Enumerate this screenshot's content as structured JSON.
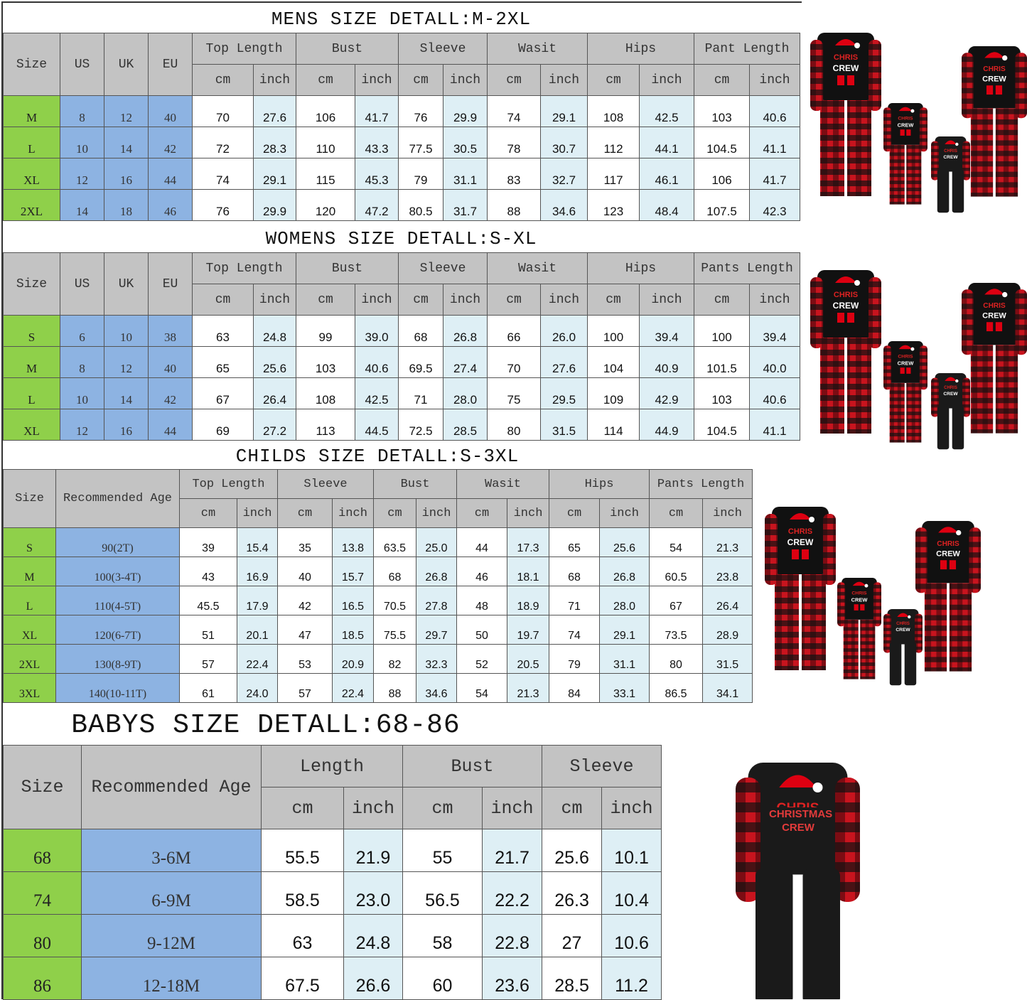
{
  "colors": {
    "header": "#c3c3c3",
    "size_col": "#8fd04a",
    "region_col": "#8db3e2",
    "inch_col": "#deeff5",
    "plaid_red": "#c8141e",
    "shirt": "#111111"
  },
  "print_text": "CHRISTMAS CREW",
  "tables": [
    {
      "key": "mens",
      "title": "MENS SIZE DETALL:M-2XL",
      "fixed_headers": [
        "Size",
        "US",
        "UK",
        "EU"
      ],
      "groups": [
        "Top Length",
        "Bust",
        "Sleeve",
        "Wasit",
        "Hips",
        "Pant Length"
      ],
      "units": [
        "cm",
        "inch"
      ],
      "rows": [
        [
          "M",
          "8",
          "12",
          "40",
          "70",
          "27.6",
          "106",
          "41.7",
          "76",
          "29.9",
          "74",
          "29.1",
          "108",
          "42.5",
          "103",
          "40.6"
        ],
        [
          "L",
          "10",
          "14",
          "42",
          "72",
          "28.3",
          "110",
          "43.3",
          "77.5",
          "30.5",
          "78",
          "30.7",
          "112",
          "44.1",
          "104.5",
          "41.1"
        ],
        [
          "XL",
          "12",
          "16",
          "44",
          "74",
          "29.1",
          "115",
          "45.3",
          "79",
          "31.1",
          "83",
          "32.7",
          "117",
          "46.1",
          "106",
          "41.7"
        ],
        [
          "2XL",
          "14",
          "18",
          "46",
          "76",
          "29.9",
          "120",
          "47.2",
          "80.5",
          "31.7",
          "88",
          "34.6",
          "123",
          "48.4",
          "107.5",
          "42.3"
        ]
      ]
    },
    {
      "key": "womens",
      "title": "WOMENS SIZE DETALL:S-XL",
      "fixed_headers": [
        "Size",
        "US",
        "UK",
        "EU"
      ],
      "groups": [
        "Top Length",
        "Bust",
        "Sleeve",
        "Wasit",
        "Hips",
        "Pants Length"
      ],
      "units": [
        "cm",
        "inch"
      ],
      "rows": [
        [
          "S",
          "6",
          "10",
          "38",
          "63",
          "24.8",
          "99",
          "39.0",
          "68",
          "26.8",
          "66",
          "26.0",
          "100",
          "39.4",
          "100",
          "39.4"
        ],
        [
          "M",
          "8",
          "12",
          "40",
          "65",
          "25.6",
          "103",
          "40.6",
          "69.5",
          "27.4",
          "70",
          "27.6",
          "104",
          "40.9",
          "101.5",
          "40.0"
        ],
        [
          "L",
          "10",
          "14",
          "42",
          "67",
          "26.4",
          "108",
          "42.5",
          "71",
          "28.0",
          "75",
          "29.5",
          "109",
          "42.9",
          "103",
          "40.6"
        ],
        [
          "XL",
          "12",
          "16",
          "44",
          "69",
          "27.2",
          "113",
          "44.5",
          "72.5",
          "28.5",
          "80",
          "31.5",
          "114",
          "44.9",
          "104.5",
          "41.1"
        ]
      ]
    },
    {
      "key": "childs",
      "title": "CHILDS SIZE DETALL:S-3XL",
      "fixed_headers": [
        "Size",
        "Recommended Age"
      ],
      "groups": [
        "Top Length",
        "Sleeve",
        "Bust",
        "Wasit",
        "Hips",
        "Pants Length"
      ],
      "units": [
        "cm",
        "inch"
      ],
      "rows": [
        [
          "S",
          "90(2T)",
          "39",
          "15.4",
          "35",
          "13.8",
          "63.5",
          "25.0",
          "44",
          "17.3",
          "65",
          "25.6",
          "54",
          "21.3"
        ],
        [
          "M",
          "100(3-4T)",
          "43",
          "16.9",
          "40",
          "15.7",
          "68",
          "26.8",
          "46",
          "18.1",
          "68",
          "26.8",
          "60.5",
          "23.8"
        ],
        [
          "L",
          "110(4-5T)",
          "45.5",
          "17.9",
          "42",
          "16.5",
          "70.5",
          "27.8",
          "48",
          "18.9",
          "71",
          "28.0",
          "67",
          "26.4"
        ],
        [
          "XL",
          "120(6-7T)",
          "51",
          "20.1",
          "47",
          "18.5",
          "75.5",
          "29.7",
          "50",
          "19.7",
          "74",
          "29.1",
          "73.5",
          "28.9"
        ],
        [
          "2XL",
          "130(8-9T)",
          "57",
          "22.4",
          "53",
          "20.9",
          "82",
          "32.3",
          "52",
          "20.5",
          "79",
          "31.1",
          "80",
          "31.5"
        ],
        [
          "3XL",
          "140(10-11T)",
          "61",
          "24.0",
          "57",
          "22.4",
          "88",
          "34.6",
          "54",
          "21.3",
          "84",
          "33.1",
          "86.5",
          "34.1"
        ]
      ]
    },
    {
      "key": "babys",
      "title": "BABYS SIZE DETALL:68-86",
      "fixed_headers": [
        "Size",
        "Recommended Age"
      ],
      "groups": [
        "Length",
        "Bust",
        "Sleeve"
      ],
      "units": [
        "cm",
        "inch"
      ],
      "rows": [
        [
          "68",
          "3-6M",
          "55.5",
          "21.9",
          "55",
          "21.7",
          "25.6",
          "10.1"
        ],
        [
          "74",
          "6-9M",
          "58.5",
          "23.0",
          "56.5",
          "22.2",
          "26.3",
          "10.4"
        ],
        [
          "80",
          "9-12M",
          "63",
          "24.8",
          "58",
          "22.8",
          "27",
          "10.6"
        ],
        [
          "86",
          "12-18M",
          "67.5",
          "26.6",
          "60",
          "23.6",
          "28.5",
          "11.2"
        ]
      ]
    }
  ]
}
